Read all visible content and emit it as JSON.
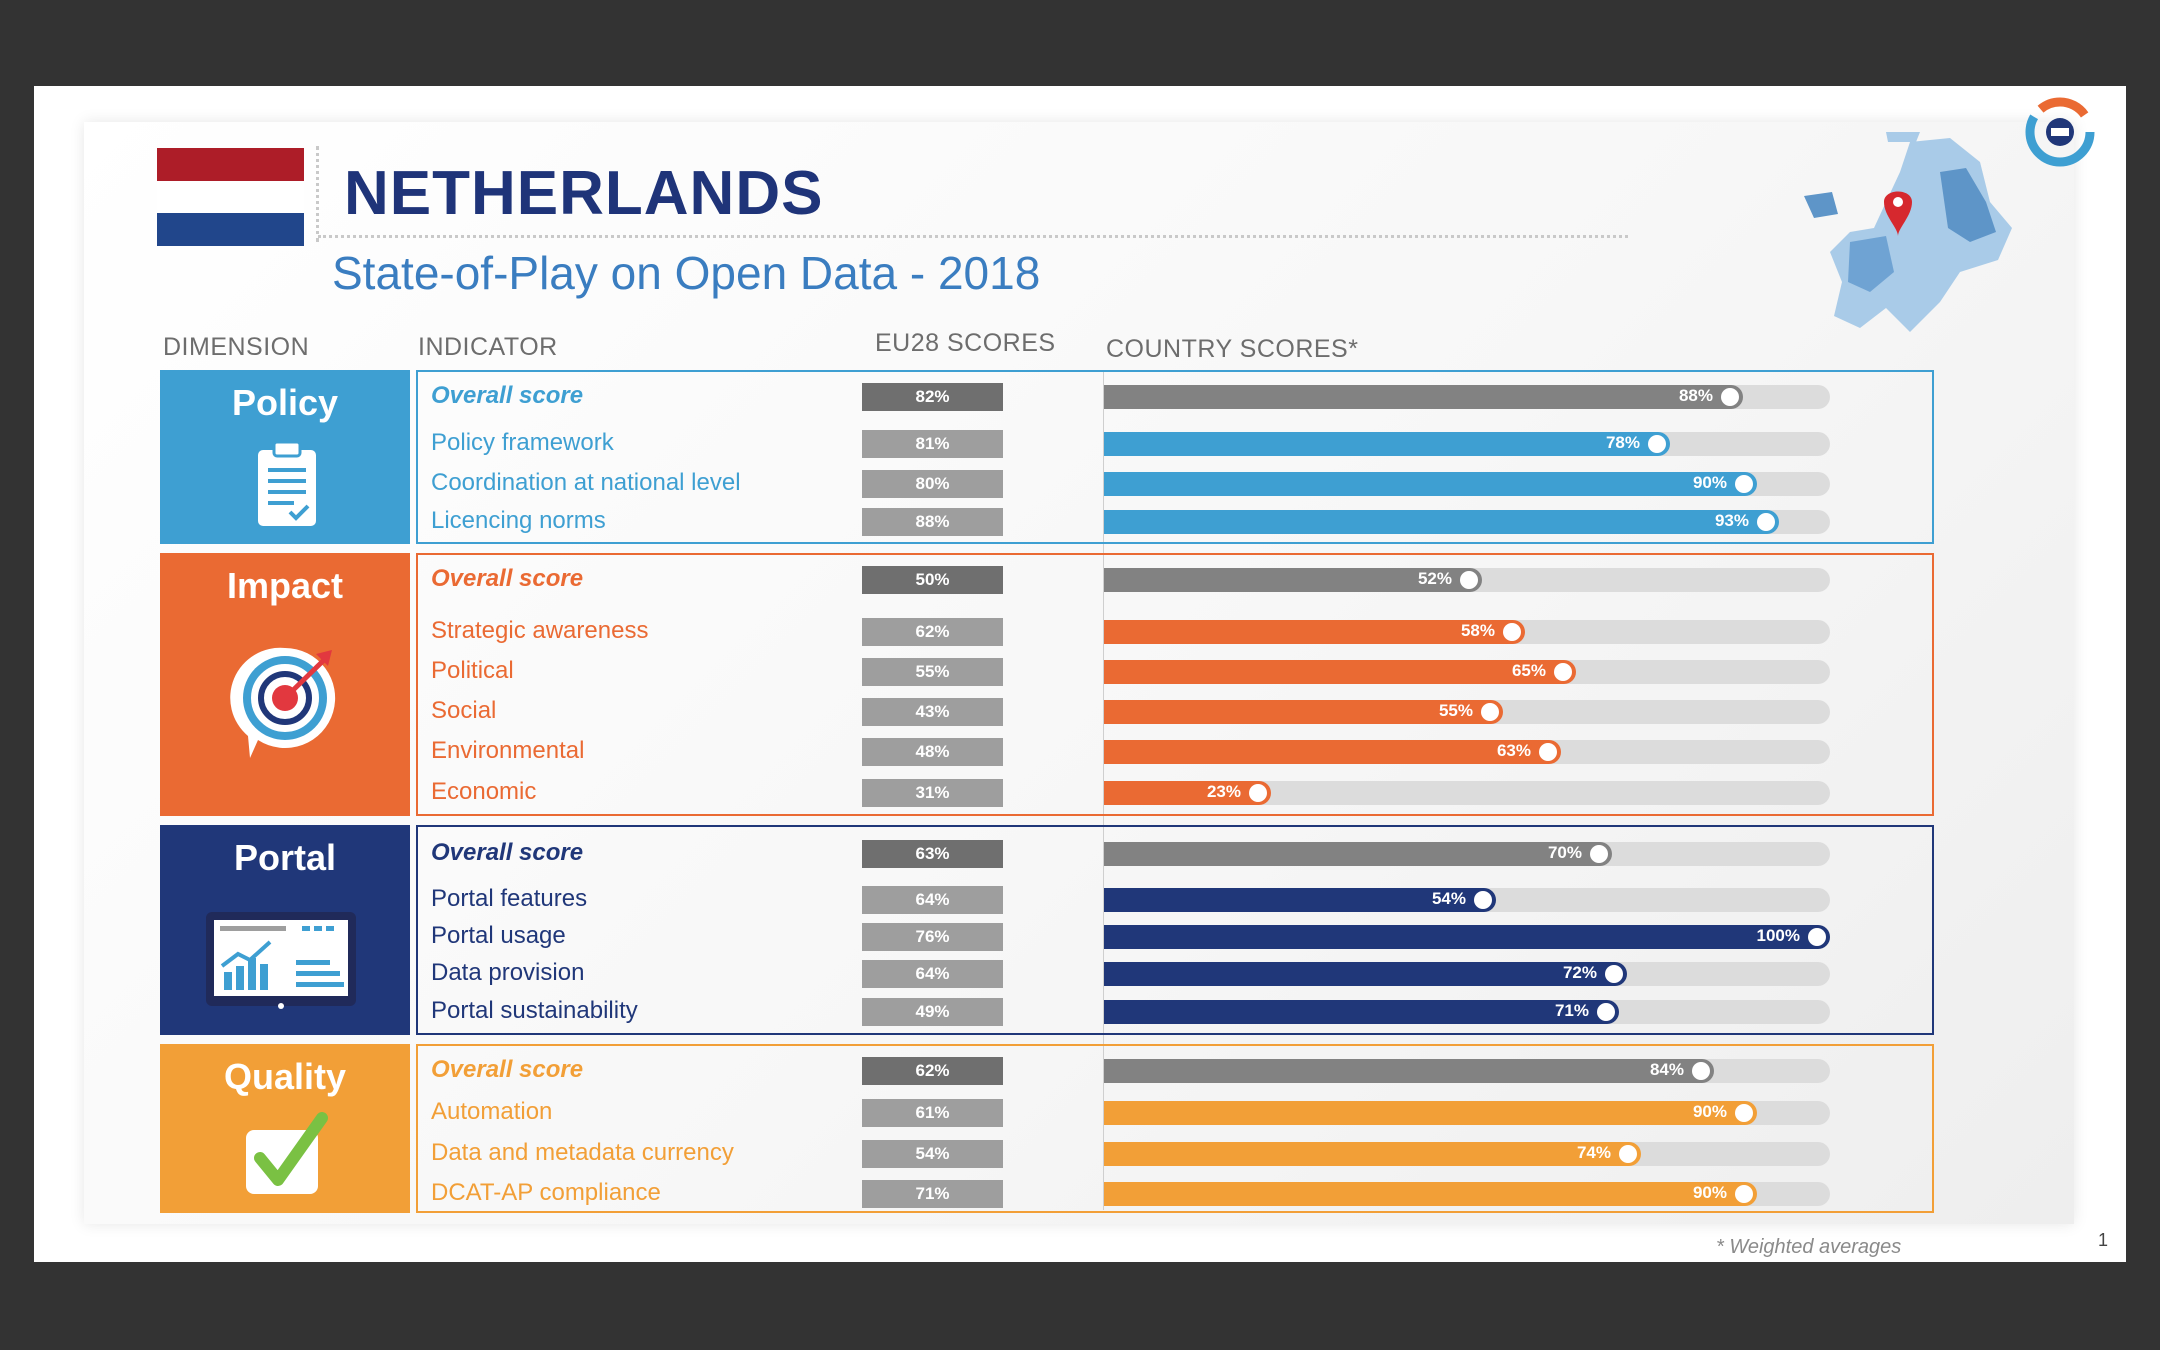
{
  "header": {
    "country": "NETHERLANDS",
    "subtitle": "State-of-Play on Open Data - 2018"
  },
  "columns": {
    "dimension": "DIMENSION",
    "indicator": "INDICATOR",
    "eu": "EU28 SCORES",
    "country": "COUNTRY SCORES*"
  },
  "footer": {
    "note": "* Weighted averages",
    "page": "1"
  },
  "colors": {
    "policy": "#3e9fd2",
    "impact": "#ea6a33",
    "portal": "#203779",
    "quality": "#f29f37",
    "overall": "#828282",
    "flag_red": "#ad1d28",
    "flag_blue": "#21468b"
  },
  "chart_data": {
    "type": "bar",
    "title": "NETHERLANDS - State-of-Play on Open Data - 2018",
    "unit": "%",
    "xlim": [
      0,
      100
    ],
    "series": [
      {
        "name": "EU28 SCORES"
      },
      {
        "name": "COUNTRY SCORES*"
      }
    ],
    "dimensions": [
      {
        "name": "Policy",
        "icon": "clipboard-icon",
        "color": "#3e9fd2",
        "indicators": [
          {
            "label": "Overall score",
            "overall": true,
            "eu": 82,
            "eu_text": "82%",
            "country": 88,
            "country_text": "88%"
          },
          {
            "label": "Policy framework",
            "eu": 81,
            "eu_text": "81%",
            "country": 78,
            "country_text": "78%"
          },
          {
            "label": "Coordination at national level",
            "eu": 80,
            "eu_text": "80%",
            "country": 90,
            "country_text": "90%"
          },
          {
            "label": "Licencing norms",
            "eu": 88,
            "eu_text": "88%",
            "country": 93,
            "country_text": "93%"
          }
        ]
      },
      {
        "name": "Impact",
        "icon": "target-icon",
        "color": "#ea6a33",
        "indicators": [
          {
            "label": "Overall score",
            "overall": true,
            "eu": 50,
            "eu_text": "50%",
            "country": 52,
            "country_text": "52%"
          },
          {
            "label": "Strategic awareness",
            "eu": 62,
            "eu_text": "62%",
            "country": 58,
            "country_text": "58%"
          },
          {
            "label": "Political",
            "eu": 55,
            "eu_text": "55%",
            "country": 65,
            "country_text": "65%"
          },
          {
            "label": "Social",
            "eu": 43,
            "eu_text": "43%",
            "country": 55,
            "country_text": "55%"
          },
          {
            "label": "Environmental",
            "eu": 48,
            "eu_text": "48%",
            "country": 63,
            "country_text": "63%"
          },
          {
            "label": "Economic",
            "eu": 31,
            "eu_text": "31%",
            "country": 23,
            "country_text": "23%"
          }
        ]
      },
      {
        "name": "Portal",
        "icon": "monitor-chart-icon",
        "color": "#203779",
        "indicators": [
          {
            "label": "Overall score",
            "overall": true,
            "eu": 63,
            "eu_text": "63%",
            "country": 70,
            "country_text": "70%"
          },
          {
            "label": "Portal features",
            "eu": 64,
            "eu_text": "64%",
            "country": 54,
            "country_text": "54%"
          },
          {
            "label": "Portal usage",
            "eu": 76,
            "eu_text": "76%",
            "country": 100,
            "country_text": "100%"
          },
          {
            "label": "Data provision",
            "eu": 64,
            "eu_text": "64%",
            "country": 72,
            "country_text": "72%"
          },
          {
            "label": "Portal sustainability",
            "eu": 49,
            "eu_text": "49%",
            "country": 71,
            "country_text": "71%"
          }
        ]
      },
      {
        "name": "Quality",
        "icon": "checkmark-icon",
        "color": "#f29f37",
        "indicators": [
          {
            "label": "Overall score",
            "overall": true,
            "eu": 62,
            "eu_text": "62%",
            "country": 84,
            "country_text": "84%"
          },
          {
            "label": "Automation",
            "eu": 61,
            "eu_text": "61%",
            "country": 90,
            "country_text": "90%"
          },
          {
            "label": "Data and metadata currency",
            "eu": 54,
            "eu_text": "54%",
            "country": 74,
            "country_text": "74%"
          },
          {
            "label": "DCAT-AP compliance",
            "eu": 71,
            "eu_text": "71%",
            "country": 90,
            "country_text": "90%"
          }
        ]
      }
    ]
  }
}
